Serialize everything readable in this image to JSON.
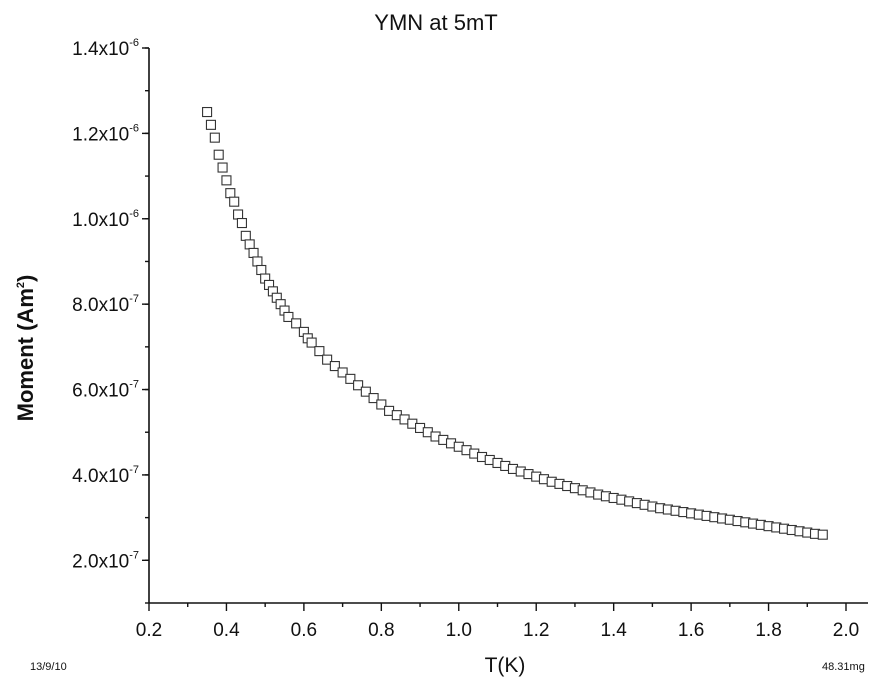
{
  "chart_data": {
    "type": "scatter",
    "title": "YMN at 5mT",
    "xlabel": "T(K)",
    "ylabel_text": "Moment (Am",
    "ylabel_sup": "2",
    "ylabel_close": ")",
    "xlim": [
      0.2,
      2.05
    ],
    "ylim": [
      1e-07,
      1.4e-06
    ],
    "x_ticks": [
      "0.2",
      "0.4",
      "0.6",
      "0.8",
      "1.0",
      "1.2",
      "1.4",
      "1.6",
      "1.8",
      "2.0"
    ],
    "x_tick_values": [
      0.2,
      0.4,
      0.6,
      0.8,
      1.0,
      1.2,
      1.4,
      1.6,
      1.8,
      2.0
    ],
    "y_ticks": [
      {
        "value": 2e-07,
        "mant": "2.0x10",
        "exp": "-7"
      },
      {
        "value": 4e-07,
        "mant": "4.0x10",
        "exp": "-7"
      },
      {
        "value": 6e-07,
        "mant": "6.0x10",
        "exp": "-7"
      },
      {
        "value": 8e-07,
        "mant": "8.0x10",
        "exp": "-7"
      },
      {
        "value": 1e-06,
        "mant": "1.0x10",
        "exp": "-6"
      },
      {
        "value": 1.2e-06,
        "mant": "1.2x10",
        "exp": "-6"
      },
      {
        "value": 1.4e-06,
        "mant": "1.4x10",
        "exp": "-6"
      }
    ],
    "marker": "open-square",
    "series": [
      {
        "points": [
          [
            0.35,
            1.25e-06
          ],
          [
            0.36,
            1.22e-06
          ],
          [
            0.37,
            1.19e-06
          ],
          [
            0.38,
            1.15e-06
          ],
          [
            0.39,
            1.12e-06
          ],
          [
            0.4,
            1.09e-06
          ],
          [
            0.41,
            1.06e-06
          ],
          [
            0.42,
            1.04e-06
          ],
          [
            0.43,
            1.01e-06
          ],
          [
            0.44,
            9.9e-07
          ],
          [
            0.45,
            9.6e-07
          ],
          [
            0.46,
            9.4e-07
          ],
          [
            0.47,
            9.2e-07
          ],
          [
            0.48,
            9e-07
          ],
          [
            0.49,
            8.8e-07
          ],
          [
            0.5,
            8.6e-07
          ],
          [
            0.51,
            8.45e-07
          ],
          [
            0.52,
            8.3e-07
          ],
          [
            0.53,
            8.15e-07
          ],
          [
            0.54,
            8e-07
          ],
          [
            0.55,
            7.85e-07
          ],
          [
            0.56,
            7.7e-07
          ],
          [
            0.58,
            7.55e-07
          ],
          [
            0.6,
            7.35e-07
          ],
          [
            0.61,
            7.2e-07
          ],
          [
            0.62,
            7.1e-07
          ],
          [
            0.64,
            6.9e-07
          ],
          [
            0.66,
            6.7e-07
          ],
          [
            0.68,
            6.55e-07
          ],
          [
            0.7,
            6.4e-07
          ],
          [
            0.72,
            6.25e-07
          ],
          [
            0.74,
            6.1e-07
          ],
          [
            0.76,
            5.95e-07
          ],
          [
            0.78,
            5.8e-07
          ],
          [
            0.8,
            5.65e-07
          ],
          [
            0.82,
            5.5e-07
          ],
          [
            0.84,
            5.4e-07
          ],
          [
            0.86,
            5.3e-07
          ],
          [
            0.88,
            5.2e-07
          ],
          [
            0.9,
            5.1e-07
          ],
          [
            0.92,
            5e-07
          ],
          [
            0.94,
            4.9e-07
          ],
          [
            0.96,
            4.82e-07
          ],
          [
            0.98,
            4.74e-07
          ],
          [
            1.0,
            4.66e-07
          ],
          [
            1.02,
            4.58e-07
          ],
          [
            1.04,
            4.5e-07
          ],
          [
            1.06,
            4.42e-07
          ],
          [
            1.08,
            4.35e-07
          ],
          [
            1.1,
            4.28e-07
          ],
          [
            1.12,
            4.21e-07
          ],
          [
            1.14,
            4.14e-07
          ],
          [
            1.16,
            4.08e-07
          ],
          [
            1.18,
            4.02e-07
          ],
          [
            1.2,
            3.96e-07
          ],
          [
            1.22,
            3.9e-07
          ],
          [
            1.24,
            3.84e-07
          ],
          [
            1.26,
            3.79e-07
          ],
          [
            1.28,
            3.74e-07
          ],
          [
            1.3,
            3.69e-07
          ],
          [
            1.32,
            3.64e-07
          ],
          [
            1.34,
            3.59e-07
          ],
          [
            1.36,
            3.54e-07
          ],
          [
            1.38,
            3.5e-07
          ],
          [
            1.4,
            3.46e-07
          ],
          [
            1.42,
            3.42e-07
          ],
          [
            1.44,
            3.38e-07
          ],
          [
            1.46,
            3.34e-07
          ],
          [
            1.48,
            3.3e-07
          ],
          [
            1.5,
            3.26e-07
          ],
          [
            1.52,
            3.22e-07
          ],
          [
            1.54,
            3.19e-07
          ],
          [
            1.56,
            3.16e-07
          ],
          [
            1.58,
            3.13e-07
          ],
          [
            1.6,
            3.1e-07
          ],
          [
            1.62,
            3.07e-07
          ],
          [
            1.64,
            3.04e-07
          ],
          [
            1.66,
            3.01e-07
          ],
          [
            1.68,
            2.98e-07
          ],
          [
            1.7,
            2.95e-07
          ],
          [
            1.72,
            2.92e-07
          ],
          [
            1.74,
            2.89e-07
          ],
          [
            1.76,
            2.86e-07
          ],
          [
            1.78,
            2.83e-07
          ],
          [
            1.8,
            2.8e-07
          ],
          [
            1.82,
            2.77e-07
          ],
          [
            1.84,
            2.74e-07
          ],
          [
            1.86,
            2.71e-07
          ],
          [
            1.88,
            2.68e-07
          ],
          [
            1.9,
            2.65e-07
          ],
          [
            1.92,
            2.62e-07
          ],
          [
            1.94,
            2.6e-07
          ]
        ]
      }
    ],
    "footer_left": "13/9/10",
    "footer_right": "48.31mg",
    "grid": false
  }
}
